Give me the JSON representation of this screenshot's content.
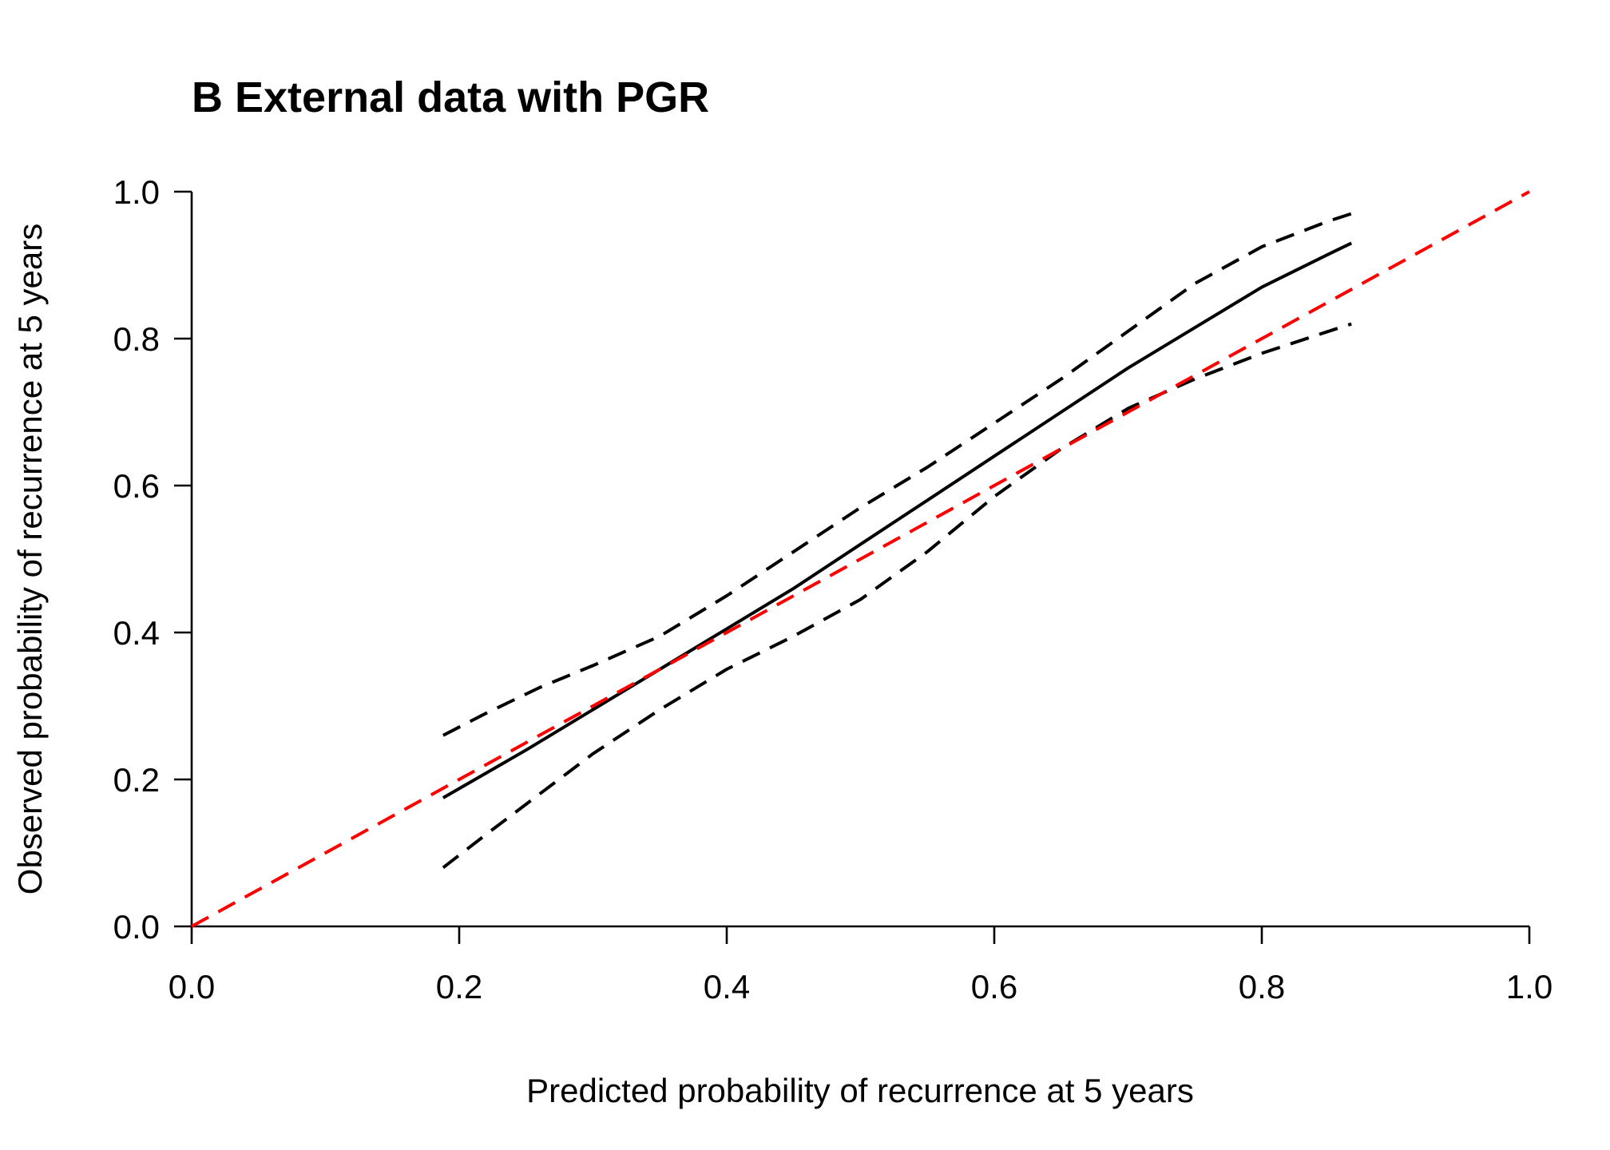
{
  "chart_data": {
    "type": "line",
    "title": "B External data with PGR",
    "xlabel": "Predicted probability of recurrence at 5 years",
    "ylabel": "Observed probability of recurrence at 5 years",
    "xlim": [
      0,
      1
    ],
    "ylim": [
      0,
      1
    ],
    "xticks": [
      "0.0",
      "0.2",
      "0.4",
      "0.6",
      "0.8",
      "1.0"
    ],
    "yticks": [
      "0.0",
      "0.2",
      "0.4",
      "0.6",
      "0.8",
      "1.0"
    ],
    "grid": false,
    "series": [
      {
        "color": "#000000",
        "dash": "solid",
        "x": [
          0.188,
          0.25,
          0.3,
          0.35,
          0.4,
          0.45,
          0.5,
          0.55,
          0.6,
          0.65,
          0.7,
          0.75,
          0.8,
          0.85,
          0.867
        ],
        "y": [
          0.175,
          0.24,
          0.295,
          0.35,
          0.405,
          0.46,
          0.52,
          0.58,
          0.64,
          0.7,
          0.76,
          0.815,
          0.87,
          0.915,
          0.93
        ]
      },
      {
        "color": "#000000",
        "dash": "dashed",
        "x": [
          0.188,
          0.22,
          0.26,
          0.3,
          0.35,
          0.4,
          0.45,
          0.5,
          0.55,
          0.6,
          0.65,
          0.7,
          0.75,
          0.8,
          0.85,
          0.867
        ],
        "y": [
          0.26,
          0.29,
          0.325,
          0.355,
          0.395,
          0.45,
          0.51,
          0.57,
          0.625,
          0.685,
          0.745,
          0.81,
          0.875,
          0.925,
          0.96,
          0.97
        ]
      },
      {
        "color": "#000000",
        "dash": "dashed",
        "x": [
          0.188,
          0.22,
          0.26,
          0.3,
          0.35,
          0.4,
          0.45,
          0.5,
          0.55,
          0.6,
          0.65,
          0.7,
          0.75,
          0.8,
          0.85,
          0.867
        ],
        "y": [
          0.08,
          0.125,
          0.18,
          0.235,
          0.295,
          0.35,
          0.395,
          0.445,
          0.51,
          0.585,
          0.65,
          0.705,
          0.745,
          0.78,
          0.81,
          0.82
        ]
      },
      {
        "color": "#ff0000",
        "dash": "dashed",
        "x": [
          0.0,
          1.0
        ],
        "y": [
          0.0,
          1.0
        ]
      }
    ]
  }
}
